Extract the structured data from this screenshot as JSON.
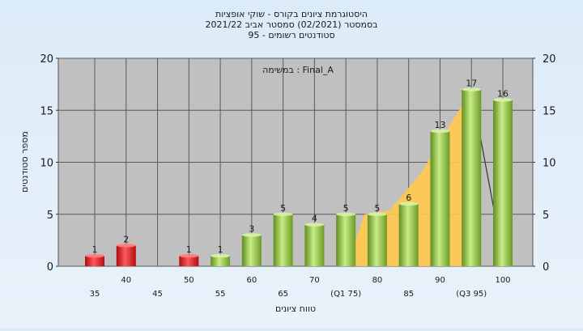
{
  "chart_data": {
    "type": "bar",
    "title_lines": [
      "היסטוגרמת ציונים בקורס - שוקי אופציות",
      "בסמסטר  (02/2021)  סמסטר אביב 2021/22",
      "סטודנטים רשומים - 95"
    ],
    "annotation": "במשימה : Final_A",
    "xlabel": "טווח ציונים",
    "ylabel": "מספר סטודנטים",
    "ylim": [
      0,
      20
    ],
    "yticks": [
      0,
      5,
      10,
      15,
      20
    ],
    "grid": true,
    "categories": [
      {
        "x": 35,
        "label": "35"
      },
      {
        "x": 40,
        "label": "40"
      },
      {
        "x": 45,
        "label": "45"
      },
      {
        "x": 50,
        "label": "50"
      },
      {
        "x": 55,
        "label": "55"
      },
      {
        "x": 60,
        "label": "60"
      },
      {
        "x": 65,
        "label": "65"
      },
      {
        "x": 70,
        "label": "70"
      },
      {
        "x": 75,
        "label": "(Q1 75)"
      },
      {
        "x": 80,
        "label": "80"
      },
      {
        "x": 85,
        "label": "85"
      },
      {
        "x": 90,
        "label": "90"
      },
      {
        "x": 95,
        "label": "(Q3 95)"
      },
      {
        "x": 100,
        "label": "100"
      }
    ],
    "bars": [
      {
        "x": 35,
        "value": 1,
        "color": "red"
      },
      {
        "x": 40,
        "value": 2,
        "color": "red"
      },
      {
        "x": 50,
        "value": 1,
        "color": "red"
      },
      {
        "x": 55,
        "value": 1,
        "color": "green"
      },
      {
        "x": 60,
        "value": 3,
        "color": "green"
      },
      {
        "x": 65,
        "value": 5,
        "color": "green"
      },
      {
        "x": 70,
        "value": 4,
        "color": "green"
      },
      {
        "x": 75,
        "value": 5,
        "color": "green"
      },
      {
        "x": 80,
        "value": 5,
        "color": "green"
      },
      {
        "x": 85,
        "value": 6,
        "color": "green"
      },
      {
        "x": 90,
        "value": 13,
        "color": "green"
      },
      {
        "x": 95,
        "value": 17,
        "color": "green"
      },
      {
        "x": 100,
        "value": 16,
        "color": "green"
      }
    ],
    "colors": {
      "plot_bg": "#c0c0c0",
      "red": "#e0161d",
      "green": "#9ccc4a",
      "area": "#ffc94d"
    }
  }
}
